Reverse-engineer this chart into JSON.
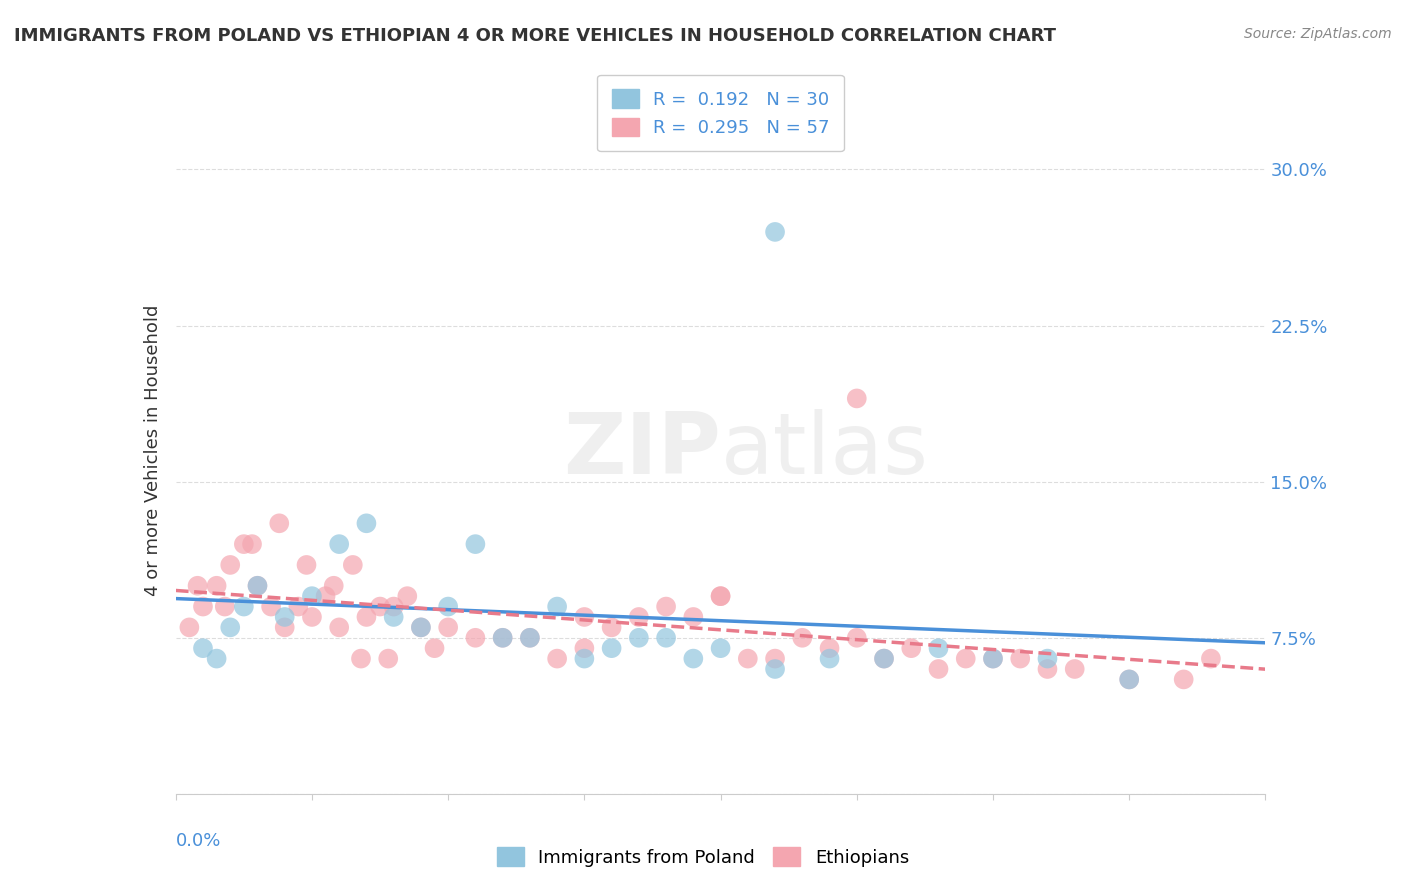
{
  "title": "IMMIGRANTS FROM POLAND VS ETHIOPIAN 4 OR MORE VEHICLES IN HOUSEHOLD CORRELATION CHART",
  "source": "Source: ZipAtlas.com",
  "ylabel": "4 or more Vehicles in Household",
  "yticks": [
    0.0,
    0.075,
    0.15,
    0.225,
    0.3
  ],
  "ytick_labels": [
    "",
    "7.5%",
    "15.0%",
    "22.5%",
    "30.0%"
  ],
  "xmin": 0.0,
  "xmax": 0.4,
  "ymin": 0.0,
  "ymax": 0.33,
  "poland_R": 0.192,
  "poland_N": 30,
  "ethiopia_R": 0.295,
  "ethiopia_N": 57,
  "poland_color": "#92C5DE",
  "ethiopia_color": "#F4A6B0",
  "poland_line_color": "#4A90D9",
  "ethiopia_line_color": "#E87A8A",
  "poland_scatter_x": [
    0.01,
    0.02,
    0.015,
    0.025,
    0.03,
    0.04,
    0.05,
    0.06,
    0.07,
    0.08,
    0.09,
    0.1,
    0.11,
    0.12,
    0.13,
    0.14,
    0.16,
    0.18,
    0.2,
    0.22,
    0.24,
    0.26,
    0.28,
    0.3,
    0.32,
    0.35,
    0.22,
    0.15,
    0.17,
    0.19
  ],
  "poland_scatter_y": [
    0.07,
    0.08,
    0.065,
    0.09,
    0.1,
    0.085,
    0.095,
    0.12,
    0.13,
    0.085,
    0.08,
    0.09,
    0.12,
    0.075,
    0.075,
    0.09,
    0.07,
    0.075,
    0.07,
    0.06,
    0.065,
    0.065,
    0.07,
    0.065,
    0.065,
    0.055,
    0.27,
    0.065,
    0.075,
    0.065
  ],
  "ethiopia_scatter_x": [
    0.005,
    0.01,
    0.015,
    0.02,
    0.025,
    0.03,
    0.035,
    0.04,
    0.045,
    0.05,
    0.055,
    0.06,
    0.065,
    0.07,
    0.075,
    0.08,
    0.085,
    0.09,
    0.095,
    0.1,
    0.11,
    0.12,
    0.13,
    0.14,
    0.15,
    0.16,
    0.17,
    0.18,
    0.19,
    0.2,
    0.21,
    0.22,
    0.23,
    0.24,
    0.25,
    0.26,
    0.27,
    0.28,
    0.29,
    0.3,
    0.31,
    0.32,
    0.33,
    0.35,
    0.37,
    0.38,
    0.008,
    0.018,
    0.028,
    0.038,
    0.048,
    0.058,
    0.068,
    0.078,
    0.25,
    0.15,
    0.2
  ],
  "ethiopia_scatter_y": [
    0.08,
    0.09,
    0.1,
    0.11,
    0.12,
    0.1,
    0.09,
    0.08,
    0.09,
    0.085,
    0.095,
    0.08,
    0.11,
    0.085,
    0.09,
    0.09,
    0.095,
    0.08,
    0.07,
    0.08,
    0.075,
    0.075,
    0.075,
    0.065,
    0.07,
    0.08,
    0.085,
    0.09,
    0.085,
    0.095,
    0.065,
    0.065,
    0.075,
    0.07,
    0.075,
    0.065,
    0.07,
    0.06,
    0.065,
    0.065,
    0.065,
    0.06,
    0.06,
    0.055,
    0.055,
    0.065,
    0.1,
    0.09,
    0.12,
    0.13,
    0.11,
    0.1,
    0.065,
    0.065,
    0.19,
    0.085,
    0.095
  ],
  "watermark_zip": "ZIP",
  "watermark_atlas": "atlas",
  "background_color": "#FFFFFF",
  "grid_color": "#DDDDDD",
  "tick_color": "#4A90D9"
}
